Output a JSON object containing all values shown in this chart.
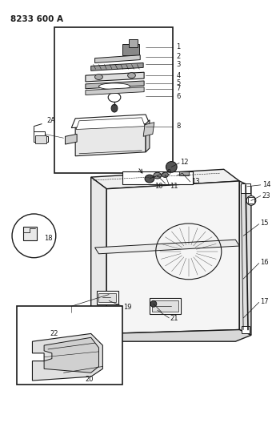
{
  "title": "8233 600 A",
  "bg_color": "#ffffff",
  "line_color": "#1a1a1a",
  "title_fontsize": 7,
  "label_fontsize": 6,
  "fig_width": 3.4,
  "fig_height": 5.33,
  "dpi": 100
}
